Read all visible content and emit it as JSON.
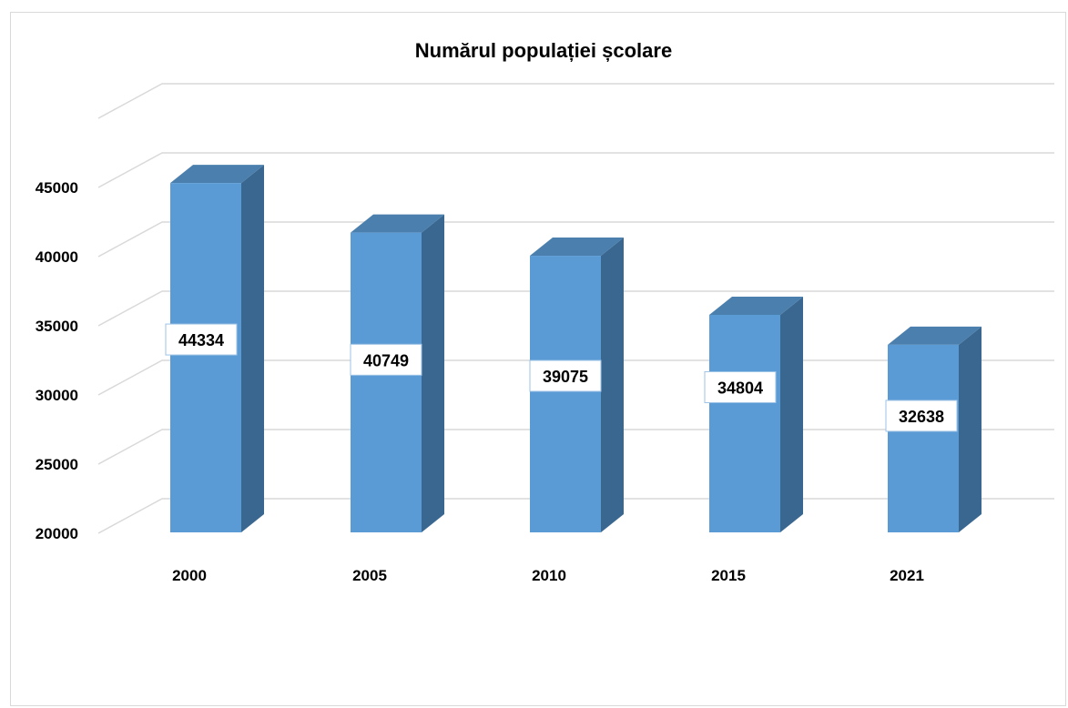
{
  "chart_data": {
    "type": "bar",
    "title": "Numărul populației școlare",
    "xlabel": "",
    "ylabel": "",
    "categories": [
      "2000",
      "2005",
      "2010",
      "2015",
      "2021"
    ],
    "values": [
      44334,
      40749,
      39075,
      34804,
      32638
    ],
    "data_labels": [
      "44334",
      "40749",
      "39075",
      "34804",
      "32638"
    ],
    "ylim": [
      20000,
      45000
    ],
    "y_ticks": [
      "20000",
      "25000",
      "30000",
      "35000",
      "40000",
      "45000"
    ],
    "grid": true,
    "legend": "none",
    "style": "3d-column",
    "colors": {
      "bar_front": "#5b9bd5",
      "bar_side": "#3a6790",
      "bar_top": "#4a7fae",
      "grid": "#d9d9d9"
    }
  }
}
